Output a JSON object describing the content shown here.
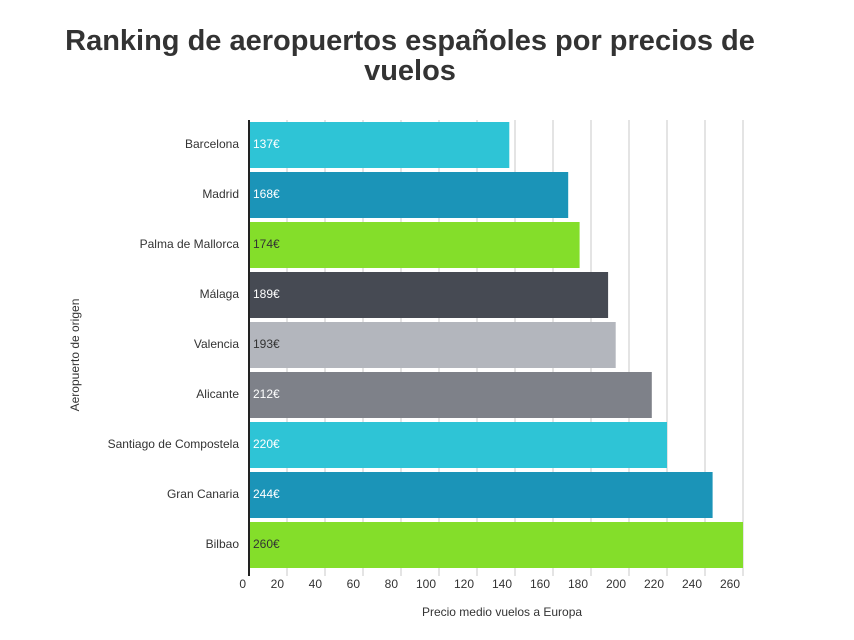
{
  "chart_data": {
    "type": "hbar",
    "title": "Ranking de aeropuertos españoles por precios de vuelos",
    "x_label": "Precio medio vuelos a Europa",
    "y_label": "Aeropuerto de origen",
    "categories": [
      "Barcelona",
      "Madrid",
      "Palma de Mallorca",
      "Málaga",
      "Valencia",
      "Alicante",
      "Santiago de Compostela",
      "Gran Canaria",
      "Bilbao"
    ],
    "values": [
      137,
      168,
      174,
      189,
      193,
      212,
      220,
      244,
      260
    ],
    "value_labels": [
      "137€",
      "168€",
      "174€",
      "189€",
      "193€",
      "212€",
      "220€",
      "244€",
      "260€"
    ],
    "colors": [
      "#2ec4d6",
      "#1b94b8",
      "#84de2a",
      "#464a53",
      "#b3b6bd",
      "#7e8189",
      "#2ec4d6",
      "#1b94b8",
      "#84de2a"
    ],
    "xlim": [
      0,
      260
    ],
    "xticks": [
      0,
      20,
      40,
      60,
      80,
      100,
      120,
      140,
      160,
      180,
      200,
      220,
      240,
      260
    ],
    "grid": true
  }
}
